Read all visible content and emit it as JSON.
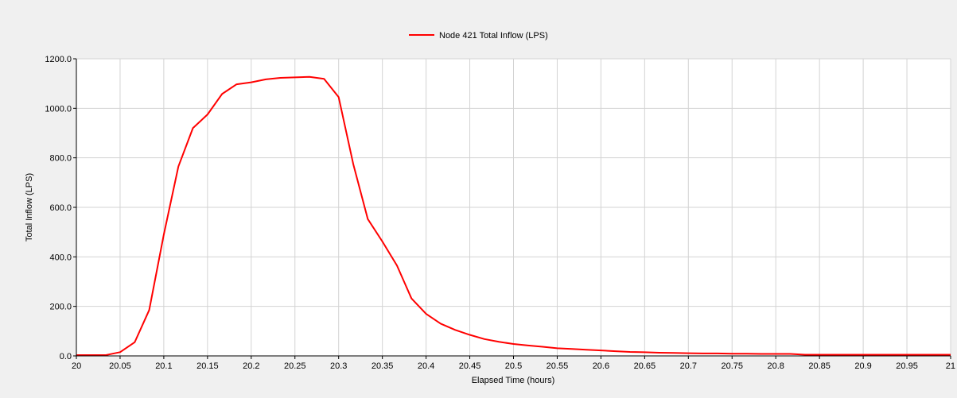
{
  "chart_data": {
    "type": "line",
    "title": "",
    "xlabel": "Elapsed Time (hours)",
    "ylabel": "Total Inflow (LPS)",
    "xlim": [
      20,
      21
    ],
    "ylim": [
      0,
      1200
    ],
    "x_ticks": [
      "20",
      "20.05",
      "20.1",
      "20.15",
      "20.2",
      "20.25",
      "20.3",
      "20.35",
      "20.4",
      "20.45",
      "20.5",
      "20.55",
      "20.6",
      "20.65",
      "20.7",
      "20.75",
      "20.8",
      "20.85",
      "20.9",
      "20.95",
      "21"
    ],
    "y_ticks": [
      "0.0",
      "200.0",
      "400.0",
      "600.0",
      "800.0",
      "1000.0",
      "1200.0"
    ],
    "grid": true,
    "legend_position": "top-center",
    "series": [
      {
        "name": "Node 421 Total Inflow (LPS)",
        "color": "#ff0000",
        "x": [
          20.0,
          20.0167,
          20.0333,
          20.05,
          20.0667,
          20.0833,
          20.1,
          20.1167,
          20.1333,
          20.15,
          20.1667,
          20.1833,
          20.2,
          20.2167,
          20.2333,
          20.25,
          20.2667,
          20.2833,
          20.3,
          20.3167,
          20.3333,
          20.35,
          20.3667,
          20.3833,
          20.4,
          20.4167,
          20.4333,
          20.45,
          20.4667,
          20.4833,
          20.5,
          20.5167,
          20.5333,
          20.55,
          20.5667,
          20.5833,
          20.6,
          20.6167,
          20.6333,
          20.65,
          20.6667,
          20.6833,
          20.7,
          20.7167,
          20.7333,
          20.75,
          20.7667,
          20.7833,
          20.8,
          20.8167,
          20.8333,
          20.85,
          20.8667,
          20.8833,
          20.9,
          20.9167,
          20.9333,
          20.95,
          20.9667,
          20.9833,
          21.0
        ],
        "y": [
          3,
          3,
          3,
          15,
          55,
          185,
          490,
          765,
          920,
          975,
          1058,
          1097,
          1105,
          1117,
          1123,
          1125,
          1127,
          1119,
          1045,
          775,
          553,
          462,
          365,
          232,
          170,
          130,
          105,
          85,
          68,
          57,
          48,
          42,
          37,
          31,
          28,
          25,
          22,
          19,
          16,
          15,
          13,
          12,
          11,
          10,
          10,
          9,
          9,
          8,
          8,
          8,
          5,
          5,
          5,
          5,
          5,
          5,
          5,
          5,
          5,
          5,
          5
        ]
      }
    ]
  }
}
